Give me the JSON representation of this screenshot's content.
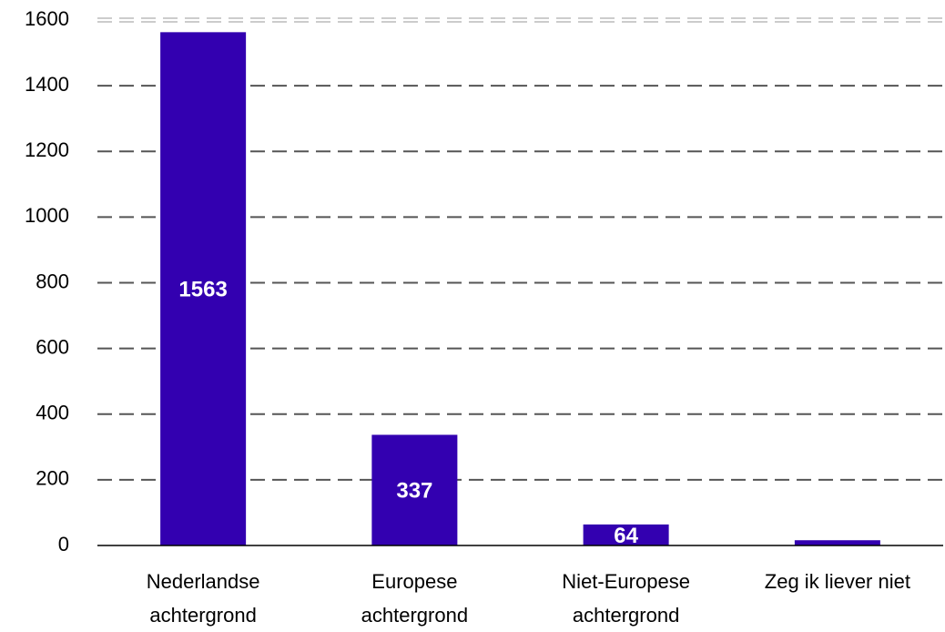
{
  "chart_data": {
    "type": "bar",
    "categories": [
      "Nederlandse achtergrond",
      "Europese achtergrond",
      "Niet-Europese achtergrond",
      "Zeg ik liever niet"
    ],
    "values": [
      1563,
      337,
      64,
      16
    ],
    "color": "#3300b0",
    "ylim": [
      0,
      1600
    ],
    "yticks": [
      0,
      200,
      400,
      600,
      800,
      1000,
      1200,
      1400,
      1600
    ],
    "grid": true
  }
}
